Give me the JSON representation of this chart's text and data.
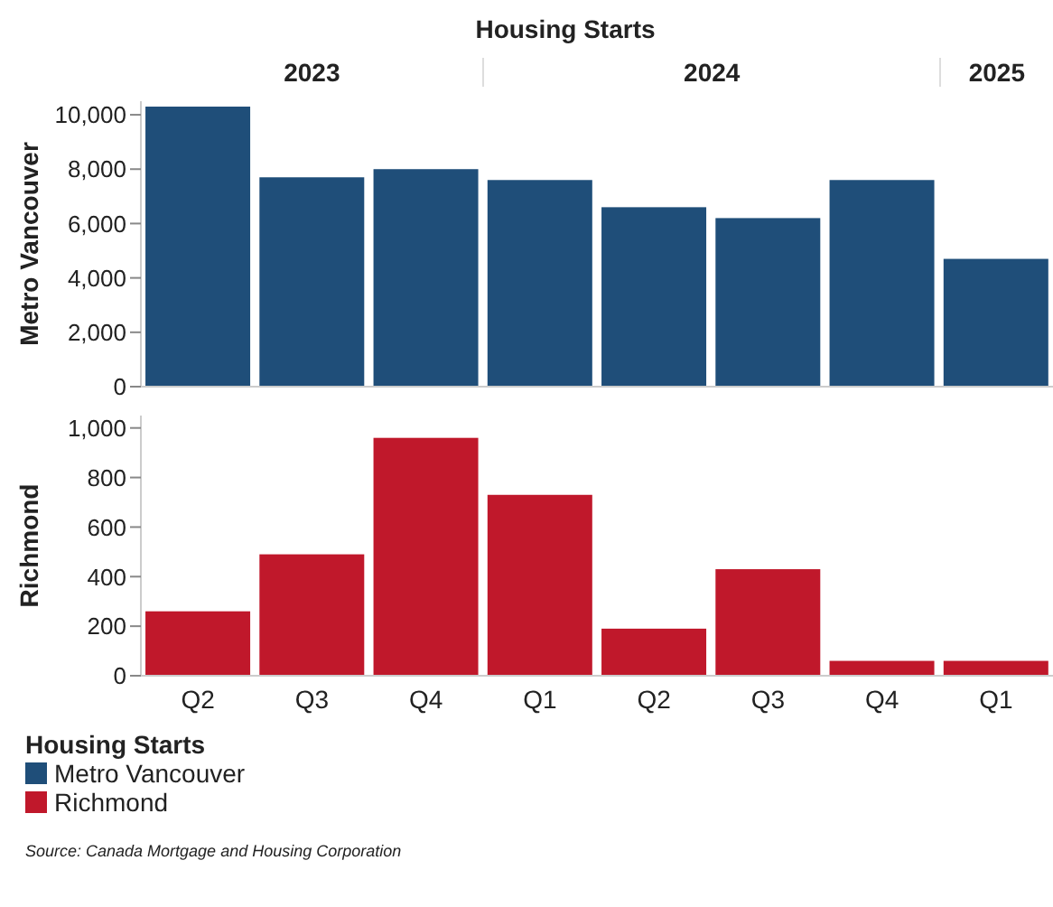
{
  "chart_data": [
    {
      "type": "bar",
      "title": "Housing Starts",
      "categories": [
        null,
        null,
        null,
        null,
        null,
        null,
        null,
        null
      ],
      "ylabel": "Metro Vancouver",
      "ylim": [
        0,
        10500
      ],
      "yticks": [
        0,
        {
          "value": 2000,
          "label": "2,000"
        },
        {
          "value": 4000,
          "label": "4,000"
        },
        {
          "value": 6000,
          "label": "6,000"
        },
        {
          "value": 8000,
          "label": "8,000"
        },
        {
          "value": 10000,
          "label": "10,000"
        }
      ],
      "tick_labels": "y",
      "legend": "bottom",
      "legend_title": "Housing Starts",
      "annotations": [
        "2023",
        "2024",
        "2025"
      ],
      "series": [
        {
          "name": "Metro Vancouver",
          "color": "#1f4e79",
          "values": [
            10300,
            7700,
            8000,
            7600,
            6600,
            6200,
            7600,
            4700
          ]
        }
      ]
    },
    {
      "type": "bar",
      "categories": [
        "Q2",
        "Q3",
        "Q4",
        "Q1",
        "Q2",
        "Q3",
        "Q4",
        "Q1"
      ],
      "ylabel": "Richmond",
      "ylim": [
        0,
        1050
      ],
      "yticks": [
        0,
        200,
        400,
        600,
        800,
        {
          "value": 1000,
          "label": "1,000"
        }
      ],
      "legend": "bottom",
      "series": [
        {
          "name": "Richmond",
          "color": "#c0182b",
          "values": [
            260,
            490,
            960,
            730,
            190,
            430,
            60,
            60
          ]
        }
      ],
      "annotations": [
        "Source: Canada Mortgage and Housing Corporation"
      ]
    }
  ]
}
